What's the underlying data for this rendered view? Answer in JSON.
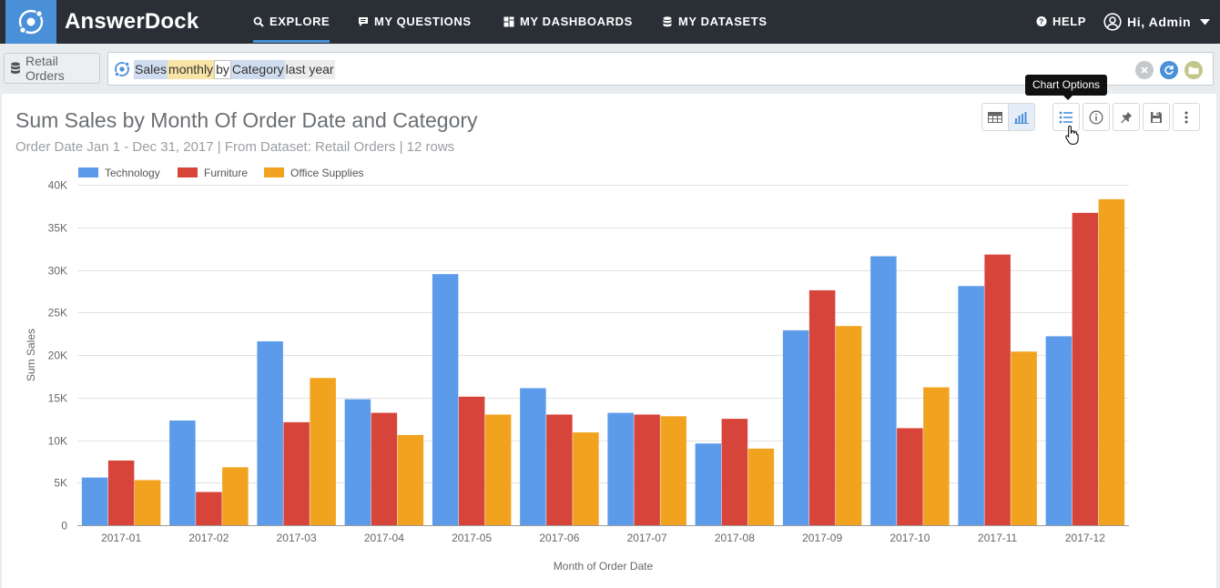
{
  "app": {
    "brand": "AnswerDock",
    "nav": [
      {
        "label": "EXPLORE",
        "icon": "search-icon",
        "active": true
      },
      {
        "label": "MY QUESTIONS",
        "icon": "chat-icon",
        "active": false
      },
      {
        "label": "MY DASHBOARDS",
        "icon": "dashboard-icon",
        "active": false
      },
      {
        "label": "MY DATASETS",
        "icon": "database-icon",
        "active": false
      }
    ],
    "help_label": "HELP",
    "user_label": "Hi, Admin"
  },
  "search": {
    "dataset_label": "Retail Orders",
    "tokens": [
      {
        "text": "Sales",
        "kind": "col"
      },
      {
        "text": "monthly",
        "kind": "agg"
      },
      {
        "text": "by",
        "kind": "kw"
      },
      {
        "text": "Category",
        "kind": "col"
      },
      {
        "text": "last year",
        "kind": "date"
      }
    ]
  },
  "result": {
    "title": "Sum Sales by Month Of Order Date and Category",
    "subtitle": "Order Date Jan 1 - Dec 31, 2017 | From Dataset: Retail Orders | 12 rows",
    "tooltip": "Chart Options"
  },
  "colors": {
    "Technology": "#5b9bea",
    "Furniture": "#d6443a",
    "Office Supplies": "#f1a320"
  },
  "chart_data": {
    "type": "bar",
    "categories": [
      "2017-01",
      "2017-02",
      "2017-03",
      "2017-04",
      "2017-05",
      "2017-06",
      "2017-07",
      "2017-08",
      "2017-09",
      "2017-10",
      "2017-11",
      "2017-12"
    ],
    "series": [
      {
        "name": "Technology",
        "values": [
          5600,
          12300,
          21600,
          14800,
          29500,
          16100,
          13200,
          9600,
          22900,
          31600,
          28100,
          22200
        ]
      },
      {
        "name": "Furniture",
        "values": [
          7600,
          3900,
          12100,
          13200,
          15100,
          13000,
          13000,
          12500,
          27600,
          11400,
          31800,
          36700
        ]
      },
      {
        "name": "Office Supplies",
        "values": [
          5300,
          6800,
          17300,
          10600,
          13000,
          10900,
          12800,
          9000,
          23400,
          16200,
          20400,
          38300
        ]
      }
    ],
    "xlabel": "Month of Order Date",
    "ylabel": "Sum Sales",
    "ylim": [
      0,
      40000
    ],
    "yticks": [
      "0",
      "5K",
      "10K",
      "15K",
      "20K",
      "25K",
      "30K",
      "35K",
      "40K"
    ],
    "grid": true,
    "legend": "top-left"
  }
}
